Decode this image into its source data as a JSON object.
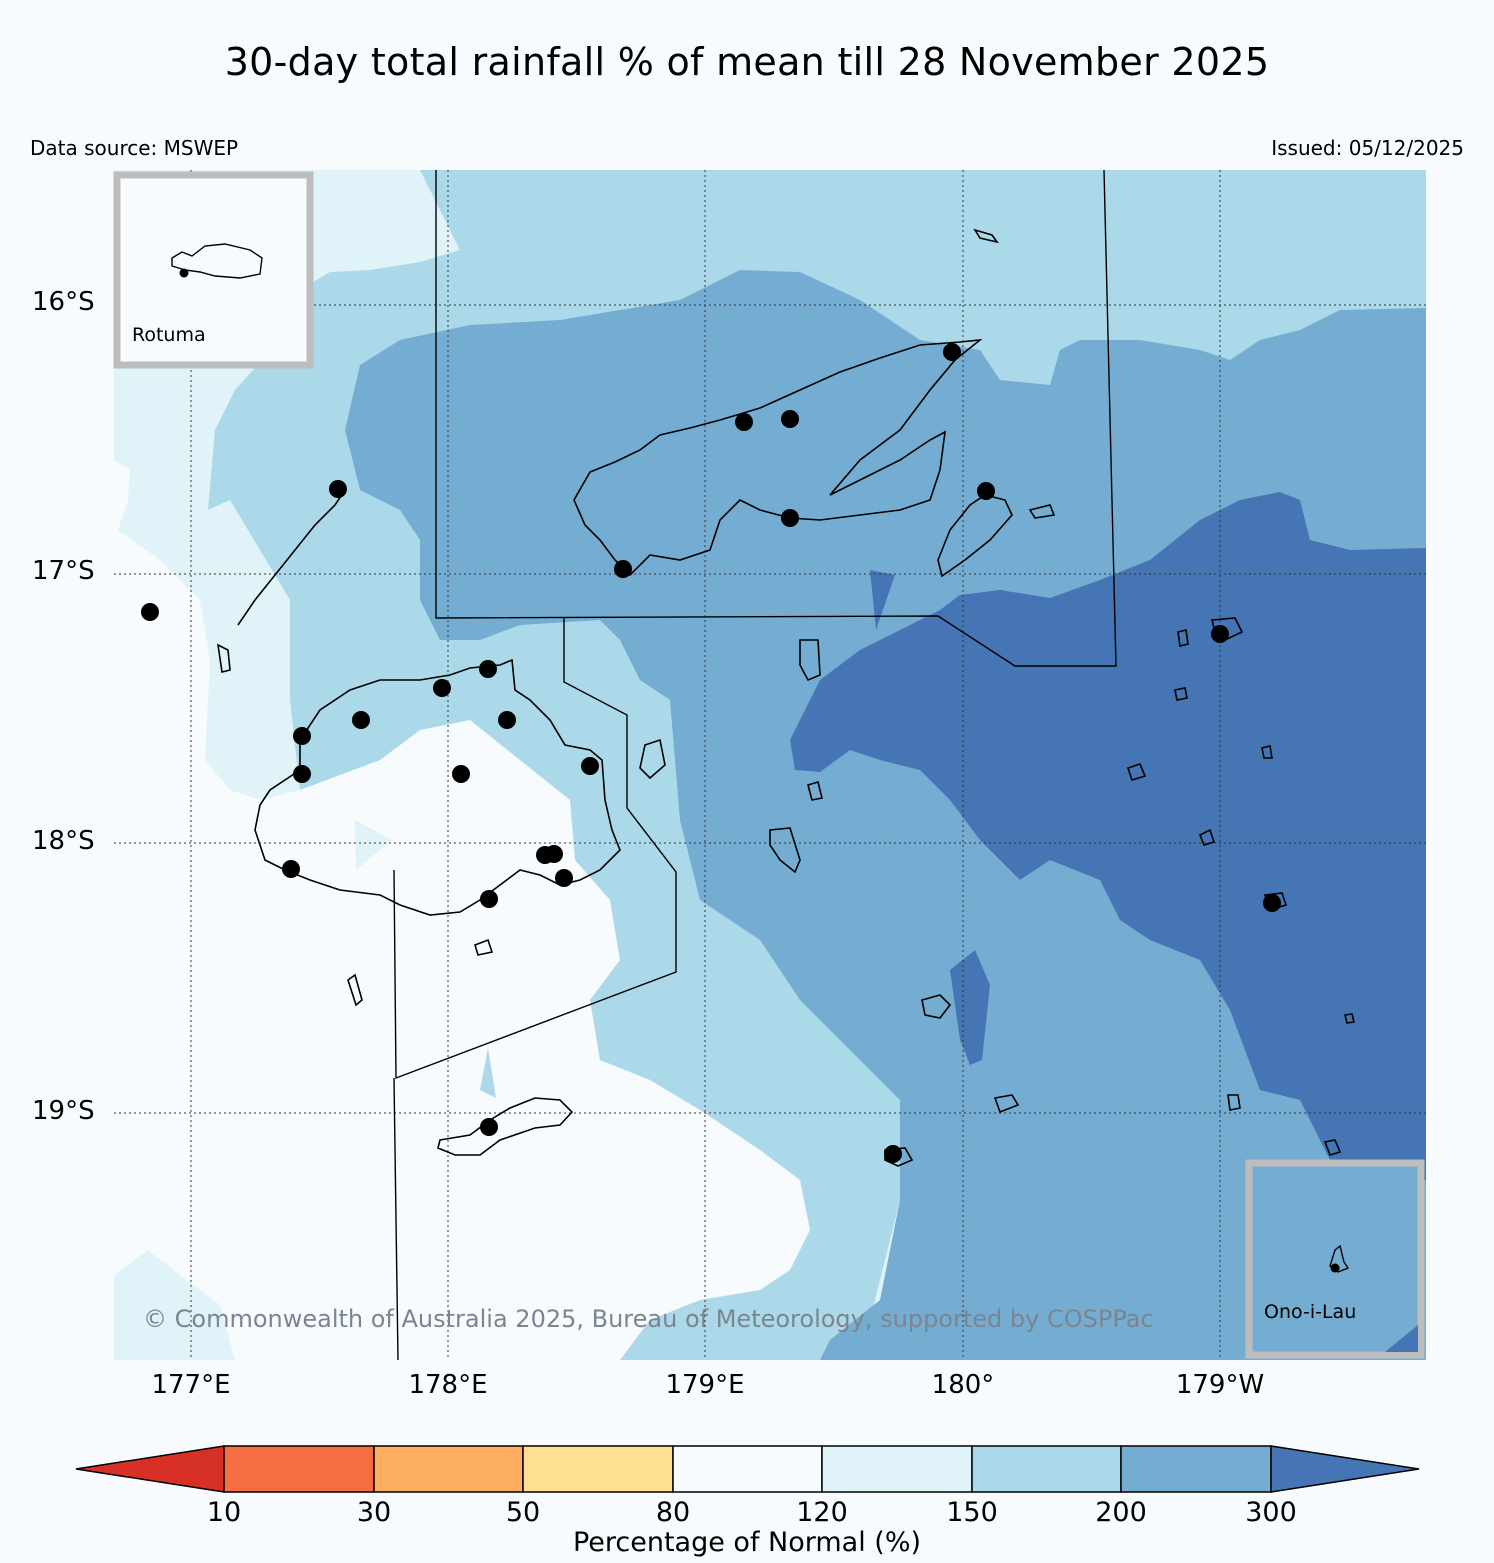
{
  "title": "30-day total rainfall % of mean till 28 November 2025",
  "data_source": "Data source: MSWEP",
  "issued": "Issued: 05/12/2025",
  "credit": "© Commonwealth of Australia 2025, Bureau of Meteorology, supported by COSPPac",
  "lat_labels": [
    "16°S",
    "17°S",
    "18°S",
    "19°S"
  ],
  "lon_labels": [
    "177°E",
    "178°E",
    "179°E",
    "180°",
    "179°W"
  ],
  "insets": {
    "rotuma": "Rotuma",
    "ono_i_lau": "Ono-i-Lau"
  },
  "legend": {
    "title": "Percentage of Normal (%)",
    "ticks": [
      "10",
      "30",
      "50",
      "80",
      "120",
      "150",
      "200",
      "300"
    ],
    "colors": {
      "below_10": "#d73027",
      "10_30": "#f46d43",
      "30_50": "#fdae61",
      "50_80": "#fee090",
      "80_120": "#f7fbfd",
      "120_150": "#e0f3f8",
      "150_200": "#abd9e9",
      "200_300": "#74add1",
      "above_300": "#4575b4"
    }
  }
}
